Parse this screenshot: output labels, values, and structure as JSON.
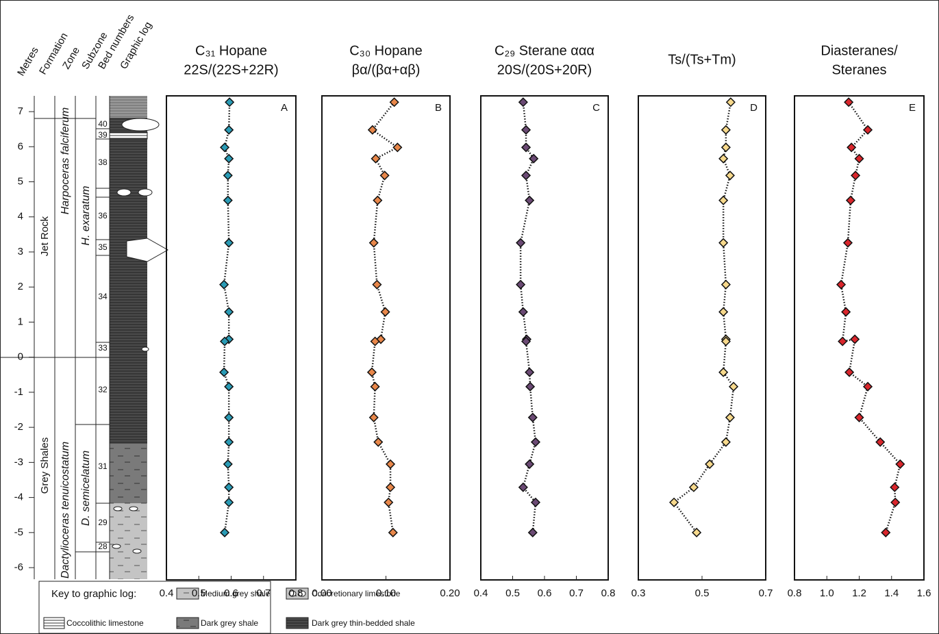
{
  "column": {
    "headers": [
      "Metres",
      "Formation",
      "Zone",
      "Subzone",
      "Bed numbers",
      "Graphic log"
    ],
    "metres_ticks": [
      7,
      6,
      5,
      4,
      3,
      2,
      1,
      0,
      -1,
      -2,
      -3,
      -4,
      -5,
      -6
    ],
    "ylim": [
      -6.35,
      7.45
    ],
    "formations": [
      "Jet Rock",
      "Grey Shales"
    ],
    "zones": [
      "Harpoceras falciferum",
      "Dactylioceras tenuicostatum"
    ],
    "subzones": [
      "H. exaratum",
      "D. semicelatum"
    ],
    "beds": [
      "40",
      "39",
      "38",
      "36",
      "35",
      "34",
      "33",
      "32",
      "31",
      "29",
      "28"
    ]
  },
  "legend": {
    "title": "Key to graphic log:",
    "items": [
      "Coccolithic limestone",
      "Medium grey shale",
      "Dark grey shale",
      "Concretionary limestone",
      "Dark grey thin-bedded shale"
    ]
  },
  "chart_data": [
    {
      "type": "scatter",
      "title": [
        "C₃₁ Hopane",
        "22S/(22S+22R)"
      ],
      "panel_label": "A",
      "color": "#2a9bb5",
      "x": [
        0.595,
        0.593,
        0.58,
        0.593,
        0.59,
        0.59,
        0.593,
        0.578,
        0.593,
        0.593,
        0.58,
        0.578,
        0.593,
        0.593,
        0.593,
        0.59,
        0.593,
        0.593,
        0.58
      ],
      "y": [
        7.27,
        6.48,
        5.98,
        5.66,
        5.18,
        4.47,
        3.26,
        2.07,
        1.29,
        0.51,
        0.45,
        -0.43,
        -0.84,
        -1.72,
        -2.42,
        -3.05,
        -3.71,
        -4.14,
        -5.0
      ],
      "xlim": [
        0.4,
        0.8
      ],
      "xticks": [
        0.4,
        0.5,
        0.6,
        0.7,
        0.8
      ],
      "ylim": [
        -6.35,
        7.45
      ]
    },
    {
      "type": "scatter",
      "title": [
        "C₃₀ Hopane",
        "βα/(βα+αβ)"
      ],
      "panel_label": "B",
      "color": "#e8874a",
      "x": [
        0.113,
        0.079,
        0.118,
        0.084,
        0.098,
        0.087,
        0.081,
        0.086,
        0.099,
        0.092,
        0.083,
        0.078,
        0.083,
        0.081,
        0.088,
        0.107,
        0.107,
        0.104,
        0.111
      ],
      "y": [
        7.27,
        6.48,
        5.98,
        5.66,
        5.18,
        4.47,
        3.26,
        2.07,
        1.29,
        0.51,
        0.45,
        -0.43,
        -0.84,
        -1.72,
        -2.42,
        -3.05,
        -3.71,
        -4.14,
        -5.0
      ],
      "xlim": [
        0,
        0.2
      ],
      "xticks": [
        {
          "value": 0,
          "label": "0.00"
        },
        {
          "value": 0.1,
          "label": "0.10"
        },
        {
          "value": 0.2,
          "label": "0.20"
        }
      ],
      "ylim": [
        -6.35,
        7.45
      ]
    },
    {
      "type": "scatter",
      "title": [
        "C₂₉ Sterane ααα",
        "20S/(20S+20R)"
      ],
      "panel_label": "C",
      "color": "#6b4a74",
      "x": [
        0.533,
        0.542,
        0.542,
        0.566,
        0.542,
        0.553,
        0.525,
        0.525,
        0.533,
        0.544,
        0.542,
        0.553,
        0.555,
        0.563,
        0.572,
        0.553,
        0.533,
        0.572,
        0.563
      ],
      "y": [
        7.27,
        6.48,
        5.98,
        5.66,
        5.18,
        4.47,
        3.26,
        2.07,
        1.29,
        0.51,
        0.45,
        -0.43,
        -0.84,
        -1.72,
        -2.42,
        -3.05,
        -3.71,
        -4.14,
        -5.0
      ],
      "xlim": [
        0.4,
        0.8
      ],
      "xticks": [
        0.4,
        0.5,
        0.6,
        0.7,
        0.8
      ],
      "ylim": [
        -6.35,
        7.45
      ]
    },
    {
      "type": "scatter",
      "title": [
        "Ts/(Ts+Tm)"
      ],
      "panel_label": "D",
      "color": "#f7d98c",
      "x": [
        0.59,
        0.575,
        0.575,
        0.567,
        0.588,
        0.567,
        0.567,
        0.575,
        0.567,
        0.575,
        0.575,
        0.567,
        0.599,
        0.588,
        0.575,
        0.524,
        0.474,
        0.412,
        0.483
      ],
      "y": [
        7.27,
        6.48,
        5.98,
        5.66,
        5.18,
        4.47,
        3.26,
        2.07,
        1.29,
        0.51,
        0.45,
        -0.43,
        -0.84,
        -1.72,
        -2.42,
        -3.05,
        -3.71,
        -4.14,
        -5.0
      ],
      "xlim": [
        0.3,
        0.7
      ],
      "xticks": [
        0.3,
        0.5,
        0.7
      ],
      "ylim": [
        -6.35,
        7.45
      ]
    },
    {
      "type": "scatter",
      "title": [
        "Diasteranes/",
        "Steranes"
      ],
      "panel_label": "E",
      "color": "#d9262c",
      "x": [
        1.135,
        1.253,
        1.152,
        1.2,
        1.177,
        1.147,
        1.13,
        1.088,
        1.118,
        1.097,
        1.173,
        1.139,
        1.253,
        1.2,
        1.33,
        1.453,
        1.419,
        1.423,
        1.364
      ],
      "y": [
        7.27,
        6.48,
        5.98,
        5.66,
        5.18,
        4.47,
        3.26,
        2.07,
        1.29,
        0.45,
        0.51,
        -0.43,
        -0.84,
        -1.72,
        -2.42,
        -3.05,
        -3.71,
        -4.14,
        -5.0
      ],
      "xlim": [
        0.8,
        1.6
      ],
      "xticks": [
        0.8,
        {
          "value": 1,
          "label": "1.0"
        },
        1.2,
        1.4,
        1.6
      ],
      "ylim": [
        -6.35,
        7.45
      ]
    }
  ]
}
